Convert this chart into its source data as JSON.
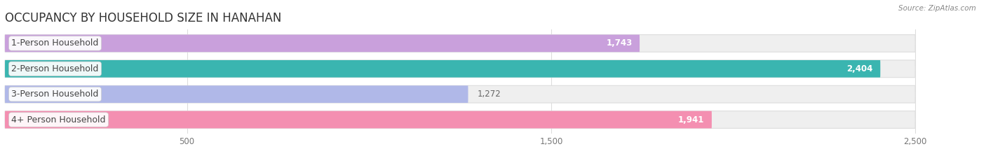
{
  "title": "OCCUPANCY BY HOUSEHOLD SIZE IN HANAHAN",
  "source": "Source: ZipAtlas.com",
  "categories": [
    "1-Person Household",
    "2-Person Household",
    "3-Person Household",
    "4+ Person Household"
  ],
  "values": [
    1743,
    2404,
    1272,
    1941
  ],
  "bar_colors": [
    "#c9a0dc",
    "#3ab5b0",
    "#b0b8e8",
    "#f48fb1"
  ],
  "value_labels": [
    "1,743",
    "2,404",
    "1,272",
    "1,941"
  ],
  "xlim": [
    0,
    2640
  ],
  "data_max": 2500,
  "xticks": [
    500,
    1500,
    2500
  ],
  "background_color": "#ffffff",
  "bar_bg_color": "#efefef",
  "bar_border_color": "#dddddd",
  "title_fontsize": 12,
  "label_fontsize": 9,
  "value_fontsize": 8.5,
  "title_color": "#333333",
  "source_color": "#888888",
  "label_text_color": "#444444",
  "value_color_inside": "#ffffff",
  "value_color_outside": "#666666"
}
